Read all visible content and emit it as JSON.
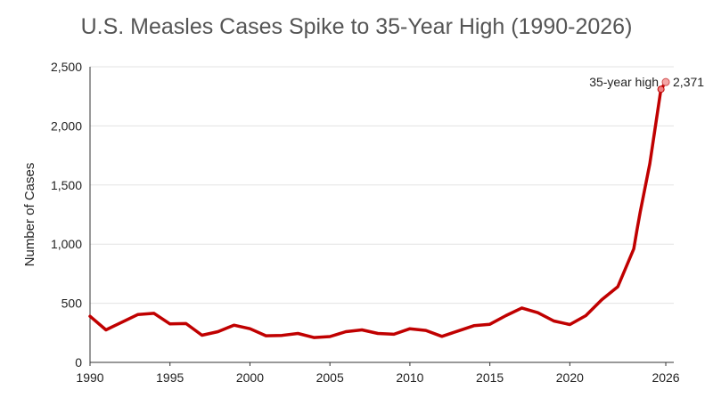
{
  "chart_data": {
    "type": "line",
    "title": "U.S. Measles Cases Spike to 35-Year High (1990-2026)",
    "xlabel": "",
    "ylabel": "Number of Cases",
    "xlim": [
      1990,
      2026.5
    ],
    "ylim": [
      0,
      2500
    ],
    "xticks": [
      1990,
      1995,
      2000,
      2005,
      2010,
      2015,
      2020,
      2026
    ],
    "xtick_labels": [
      "1990",
      "1995",
      "2000",
      "2005",
      "2010",
      "2015",
      "2020",
      "2026"
    ],
    "yticks": [
      0,
      500,
      1000,
      1500,
      2000,
      2500
    ],
    "ytick_labels": [
      "0",
      "500",
      "1,000",
      "1,500",
      "2,000",
      "2,500"
    ],
    "grid": true,
    "series_color": "#c00000",
    "series": [
      {
        "x": [
          1990,
          1991,
          1992,
          1993,
          1994,
          1995,
          1996,
          1997,
          1998,
          1999,
          2000,
          2001,
          2002,
          2003,
          2004,
          2005,
          2006,
          2007,
          2008,
          2009,
          2010,
          2011,
          2012,
          2013,
          2014,
          2015,
          2016,
          2017,
          2018,
          2019,
          2020,
          2021,
          2022,
          2023,
          2024,
          2024.2,
          2024.4,
          2025,
          2025.7,
          2026
        ],
        "y": [
          390,
          275,
          340,
          405,
          415,
          325,
          328,
          230,
          260,
          315,
          285,
          225,
          228,
          245,
          210,
          218,
          260,
          275,
          245,
          238,
          285,
          270,
          220,
          265,
          310,
          322,
          395,
          460,
          420,
          350,
          320,
          395,
          530,
          640,
          960,
          1120,
          1270,
          1680,
          2310,
          2371
        ]
      }
    ],
    "annotations": [
      {
        "x": 2026,
        "y": 2371,
        "label": "35-year high",
        "value_label": "2,371"
      }
    ]
  }
}
